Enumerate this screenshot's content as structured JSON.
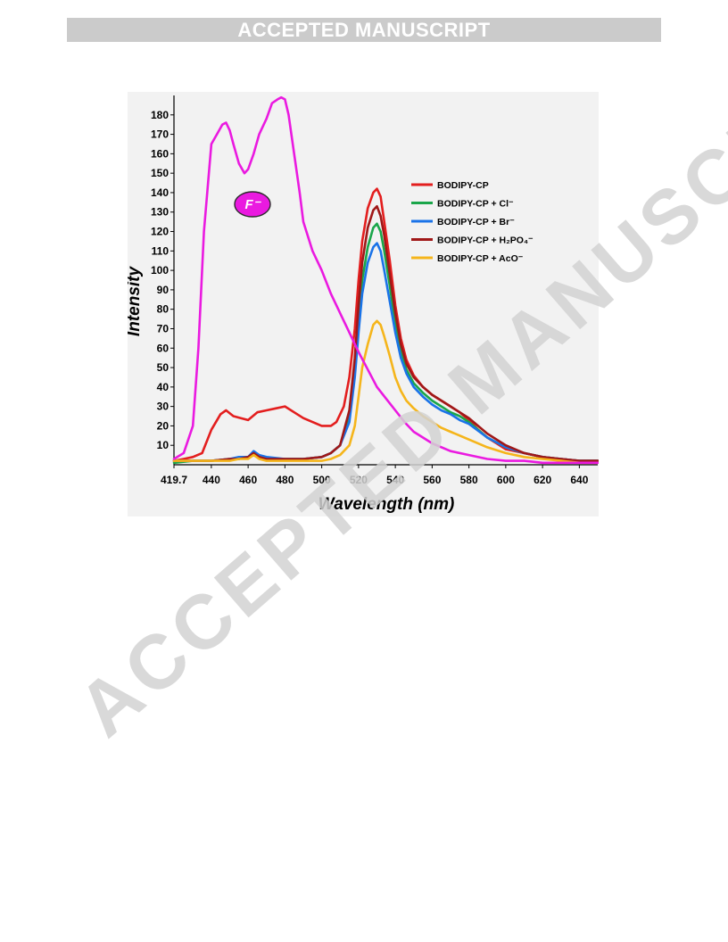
{
  "header": {
    "banner": "ACCEPTED MANUSCRIPT"
  },
  "watermark": {
    "text": "ACCEPTED MANUSCRIPT"
  },
  "chart_data": {
    "type": "line",
    "xlabel": "Wavelength (nm)",
    "ylabel": "Intensity",
    "xlim": [
      419.7,
      650
    ],
    "ylim": [
      0,
      190
    ],
    "x_ticks": [
      419.7,
      440,
      460,
      480,
      500,
      520,
      540,
      560,
      580,
      600,
      620,
      640
    ],
    "x_tick_labels": [
      "419.7",
      "440",
      "460",
      "480",
      "500",
      "520",
      "540",
      "560",
      "580",
      "600",
      "620",
      "640"
    ],
    "y_ticks": [
      10,
      20,
      30,
      40,
      50,
      60,
      70,
      80,
      90,
      100,
      110,
      120,
      130,
      140,
      150,
      160,
      170,
      180
    ],
    "y_tick_labels": [
      "10",
      "20",
      "30",
      "40",
      "50",
      "60",
      "70",
      "80",
      "90",
      "100",
      "110",
      "120",
      "130",
      "140",
      "150",
      "160",
      "170",
      "180"
    ],
    "grid": false,
    "legend_position": "top-right",
    "annotation": "F⁻",
    "series": [
      {
        "name": "BODIPY-CP",
        "color": "#e31e1e",
        "x": [
          419.7,
          425,
          430,
          435,
          440,
          445,
          448,
          452,
          456,
          460,
          465,
          470,
          475,
          480,
          485,
          490,
          495,
          500,
          505,
          508,
          512,
          515,
          518,
          520,
          522,
          525,
          528,
          530,
          532,
          534,
          537,
          540,
          543,
          546,
          550,
          555,
          560,
          565,
          570,
          575,
          580,
          585,
          590,
          595,
          600,
          610,
          620,
          630,
          640,
          650
        ],
        "y": [
          2,
          3,
          4,
          6,
          18,
          26,
          28,
          25,
          24,
          23,
          27,
          28,
          29,
          30,
          27,
          24,
          22,
          20,
          20,
          22,
          30,
          45,
          70,
          95,
          115,
          132,
          140,
          142,
          138,
          125,
          105,
          82,
          65,
          54,
          46,
          40,
          36,
          33,
          30,
          27,
          23,
          18,
          14,
          11,
          8,
          6,
          4,
          3,
          2,
          2
        ]
      },
      {
        "name": "BODIPY-CP + Cl⁻",
        "color": "#1aa64a",
        "x": [
          419.7,
          430,
          440,
          450,
          455,
          460,
          463,
          466,
          470,
          480,
          490,
          500,
          505,
          510,
          515,
          518,
          520,
          522,
          525,
          528,
          530,
          532,
          534,
          537,
          540,
          543,
          546,
          550,
          555,
          560,
          565,
          570,
          575,
          580,
          590,
          600,
          610,
          620,
          630,
          640,
          650
        ],
        "y": [
          1,
          2,
          2,
          3,
          3,
          4,
          6,
          4,
          3,
          3,
          3,
          4,
          6,
          10,
          25,
          50,
          75,
          95,
          112,
          122,
          124,
          120,
          110,
          92,
          72,
          58,
          49,
          42,
          37,
          33,
          30,
          27,
          25,
          22,
          14,
          9,
          6,
          4,
          3,
          2,
          2
        ]
      },
      {
        "name": "BODIPY-CP + Br⁻",
        "color": "#1a73e8",
        "x": [
          419.7,
          430,
          440,
          450,
          455,
          460,
          463,
          466,
          470,
          480,
          490,
          500,
          505,
          510,
          515,
          518,
          520,
          522,
          525,
          528,
          530,
          532,
          534,
          537,
          540,
          543,
          546,
          550,
          555,
          560,
          565,
          570,
          575,
          580,
          590,
          600,
          610,
          620,
          630,
          640,
          650
        ],
        "y": [
          2,
          2,
          2,
          3,
          4,
          4,
          7,
          5,
          4,
          3,
          3,
          4,
          6,
          10,
          22,
          45,
          68,
          88,
          104,
          112,
          114,
          110,
          100,
          84,
          68,
          55,
          47,
          40,
          35,
          31,
          28,
          26,
          23,
          21,
          14,
          9,
          6,
          4,
          3,
          2,
          2
        ]
      },
      {
        "name": "BODIPY-CP + H₂PO₄⁻",
        "color": "#a01818",
        "x": [
          419.7,
          430,
          440,
          450,
          455,
          460,
          463,
          466,
          470,
          480,
          490,
          500,
          505,
          510,
          515,
          518,
          520,
          522,
          525,
          528,
          530,
          532,
          534,
          537,
          540,
          543,
          546,
          550,
          555,
          560,
          565,
          570,
          575,
          580,
          590,
          600,
          610,
          620,
          630,
          640,
          650
        ],
        "y": [
          2,
          2,
          2,
          3,
          3,
          4,
          6,
          4,
          3,
          3,
          3,
          4,
          6,
          10,
          28,
          55,
          82,
          104,
          122,
          131,
          133,
          128,
          118,
          98,
          78,
          62,
          52,
          45,
          40,
          36,
          33,
          30,
          27,
          24,
          16,
          10,
          6,
          4,
          3,
          2,
          2
        ]
      },
      {
        "name": "BODIPY-CP + AcO⁻",
        "color": "#f5b51b",
        "x": [
          419.7,
          430,
          440,
          450,
          455,
          460,
          463,
          466,
          470,
          480,
          490,
          500,
          505,
          510,
          515,
          518,
          520,
          522,
          525,
          528,
          530,
          532,
          534,
          537,
          540,
          543,
          546,
          550,
          555,
          560,
          565,
          570,
          575,
          580,
          590,
          600,
          610,
          620,
          630,
          640,
          650
        ],
        "y": [
          2,
          2,
          2,
          2,
          3,
          3,
          5,
          3,
          2,
          2,
          2,
          2,
          3,
          5,
          10,
          20,
          35,
          50,
          62,
          72,
          74,
          72,
          66,
          56,
          45,
          38,
          33,
          29,
          25,
          22,
          19,
          17,
          15,
          13,
          9,
          6,
          4,
          3,
          2,
          1,
          1
        ]
      },
      {
        "name": "F⁻",
        "color": "#ea1ae0",
        "x": [
          419.7,
          425,
          430,
          433,
          436,
          440,
          443,
          446,
          448,
          450,
          452,
          455,
          458,
          460,
          463,
          466,
          470,
          473,
          476,
          478,
          480,
          482,
          485,
          488,
          490,
          495,
          500,
          505,
          510,
          515,
          520,
          525,
          530,
          535,
          540,
          545,
          550,
          555,
          560,
          570,
          580,
          590,
          600,
          610,
          620,
          630,
          640,
          650
        ],
        "y": [
          3,
          6,
          20,
          60,
          120,
          165,
          170,
          175,
          176,
          172,
          165,
          155,
          150,
          152,
          160,
          170,
          178,
          186,
          188,
          189,
          188,
          180,
          160,
          140,
          125,
          110,
          100,
          88,
          78,
          68,
          58,
          49,
          40,
          34,
          28,
          22,
          17,
          14,
          11,
          7,
          5,
          3,
          2,
          2,
          1,
          1,
          1,
          1
        ]
      }
    ]
  }
}
